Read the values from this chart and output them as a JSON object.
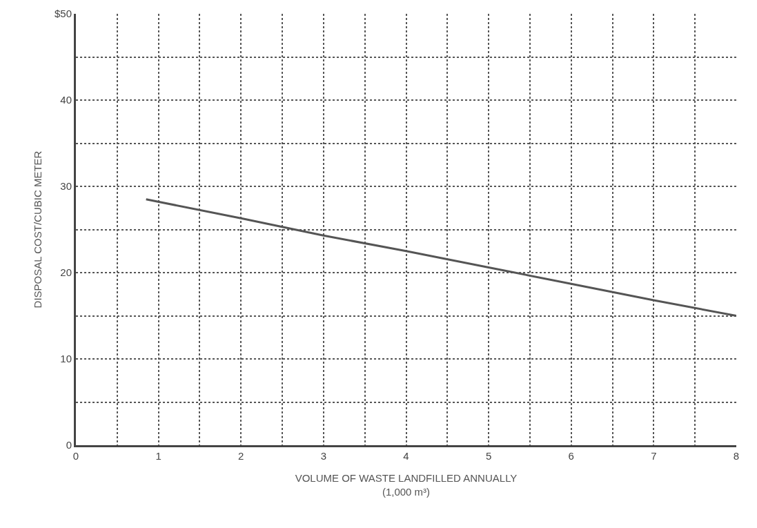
{
  "chart_data": {
    "type": "line",
    "xlabel": "VOLUME OF WASTE LANDFILLED ANNUALLY\n(1,000 m³)",
    "ylabel": "DISPOSAL COST/CUBIC METER",
    "x": [
      0.85,
      2,
      3,
      4,
      5,
      6,
      7,
      8
    ],
    "series": [
      {
        "color": "#555555",
        "values": [
          28.5,
          26.3,
          24.3,
          22.5,
          20.6,
          18.7,
          16.8,
          15
        ]
      }
    ],
    "xlim": [
      0,
      8
    ],
    "ylim": [
      0,
      50
    ],
    "xticks": [
      0,
      {
        "value": 0.5,
        "label": null
      },
      1,
      {
        "value": 1.5,
        "label": null
      },
      2,
      {
        "value": 2.5,
        "label": null
      },
      3,
      {
        "value": 3.5,
        "label": null
      },
      4,
      {
        "value": 4.5,
        "label": null
      },
      5,
      {
        "value": 5.5,
        "label": null
      },
      6,
      {
        "value": 6.5,
        "label": null
      },
      7,
      {
        "value": 7.5,
        "label": null
      },
      8
    ],
    "yticks": [
      0,
      {
        "value": 5,
        "label": null
      },
      10,
      {
        "value": 15,
        "label": null
      },
      20,
      {
        "value": 25,
        "label": null
      },
      30,
      {
        "value": 35,
        "label": null
      },
      40,
      {
        "value": 45,
        "label": null
      },
      {
        "value": 50,
        "label": "$50"
      }
    ],
    "grid": true,
    "marker": "none",
    "line_style": "solid"
  }
}
